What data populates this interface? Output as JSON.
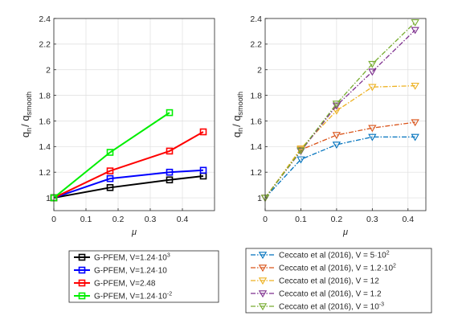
{
  "chart_data": [
    {
      "type": "line",
      "ylabel": {
        "base1": "q",
        "sub1": "n",
        "slash": "/ ",
        "base2": "q",
        "sub2": "smooth"
      },
      "xlabel": "μ",
      "xlim": [
        0,
        0.5
      ],
      "ylim": [
        0.9,
        2.4
      ],
      "xticks": [
        "0",
        "0.1",
        "0.2",
        "0.3",
        "0.4"
      ],
      "yticks": [
        "1",
        "1.2",
        "1.4",
        "1.6",
        "1.8",
        "2",
        "2.2",
        "2.4"
      ],
      "grid": true,
      "marker": "square",
      "line_style": "solid",
      "series": [
        {
          "name": "G-PFEM, V=1.24·10",
          "sup": "3",
          "color": "#000000",
          "x": [
            0,
            0.175,
            0.36,
            0.465
          ],
          "y": [
            1.0,
            1.08,
            1.14,
            1.17
          ]
        },
        {
          "name": "G-PFEM, V=1.24·10",
          "sup": "",
          "color": "#0000ff",
          "x": [
            0,
            0.175,
            0.36,
            0.465
          ],
          "y": [
            1.0,
            1.15,
            1.2,
            1.215
          ]
        },
        {
          "name": "G-PFEM, V=2.48",
          "sup": "",
          "color": "#ff0000",
          "x": [
            0,
            0.175,
            0.36,
            0.465
          ],
          "y": [
            1.0,
            1.21,
            1.365,
            1.515
          ]
        },
        {
          "name": "G-PFEM, V=1.24·10",
          "sup": "-2",
          "color": "#00ee00",
          "x": [
            0,
            0.175,
            0.36
          ],
          "y": [
            1.0,
            1.355,
            1.665
          ]
        }
      ]
    },
    {
      "type": "line",
      "ylabel": {
        "base1": "q",
        "sub1": "n",
        "slash": "/ ",
        "base2": "q",
        "sub2": "smooth"
      },
      "xlabel": "μ",
      "xlim": [
        0,
        0.45
      ],
      "ylim": [
        0.9,
        2.4
      ],
      "xticks": [
        "0",
        "0.1",
        "0.2",
        "0.3",
        "0.4"
      ],
      "yticks": [
        "1",
        "1.2",
        "1.4",
        "1.6",
        "1.8",
        "2",
        "2.2",
        "2.4"
      ],
      "grid": true,
      "marker": "triangle-down",
      "line_style": "dash-dot",
      "series": [
        {
          "name": "Ceccato et al (2016), V = 5·10",
          "sup": "2",
          "color": "#0072bd",
          "x": [
            0,
            0.1,
            0.2,
            0.3,
            0.42
          ],
          "y": [
            1.0,
            1.3,
            1.415,
            1.475,
            1.475
          ]
        },
        {
          "name": "Ceccato et al (2016), V = 1.2·10",
          "sup": "2",
          "color": "#d95319",
          "x": [
            0,
            0.1,
            0.2,
            0.3,
            0.42
          ],
          "y": [
            1.0,
            1.375,
            1.49,
            1.545,
            1.59
          ]
        },
        {
          "name": "Ceccato et al (2016), V = 12",
          "sup": "",
          "color": "#edb120",
          "x": [
            0,
            0.1,
            0.2,
            0.3,
            0.42
          ],
          "y": [
            1.0,
            1.385,
            1.68,
            1.865,
            1.875
          ]
        },
        {
          "name": "Ceccato et al (2016), V = 1.2",
          "sup": "",
          "color": "#7e2f8e",
          "x": [
            0,
            0.1,
            0.2,
            0.3,
            0.42
          ],
          "y": [
            1.0,
            1.365,
            1.72,
            1.985,
            2.31
          ]
        },
        {
          "name": "Ceccato et al (2016), V = 10",
          "sup": "-3",
          "color": "#77ac30",
          "x": [
            0,
            0.1,
            0.2,
            0.3,
            0.42
          ],
          "y": [
            1.0,
            1.37,
            1.735,
            2.045,
            2.37
          ]
        }
      ]
    }
  ]
}
